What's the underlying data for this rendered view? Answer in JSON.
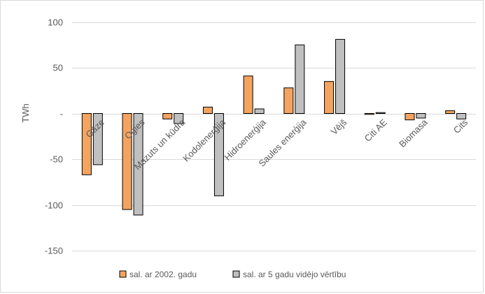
{
  "chart_data": {
    "type": "bar",
    "title": "",
    "ylabel": "TWh",
    "xlabel": "",
    "ylim": [
      -170,
      100
    ],
    "yticks": [
      100,
      50,
      0,
      -50,
      -100,
      -150
    ],
    "ytick_labels": [
      "100",
      "50",
      "-",
      "-50",
      "-100",
      "-150"
    ],
    "grid": true,
    "legend_position": "bottom",
    "categories": [
      "Gāze",
      "Ogles",
      "Mazuts un kūdra",
      "Kodolenerģija",
      "Hidroenerģija",
      "Saules enerģija",
      "Vējš",
      "Citi AE",
      "Biomasa",
      "Cits"
    ],
    "series": [
      {
        "name": "sal. ar 2002. gadu",
        "color": "#f4a460",
        "values": [
          -67,
          -105,
          -6,
          7,
          41,
          28,
          35,
          -1,
          -7,
          3
        ]
      },
      {
        "name": "sal. ar 5 gadu vidējo vērtību",
        "color": "#c0c0c0",
        "values": [
          -56,
          -111,
          -11,
          -90,
          5,
          75,
          81,
          1,
          -5,
          -6
        ]
      }
    ]
  }
}
